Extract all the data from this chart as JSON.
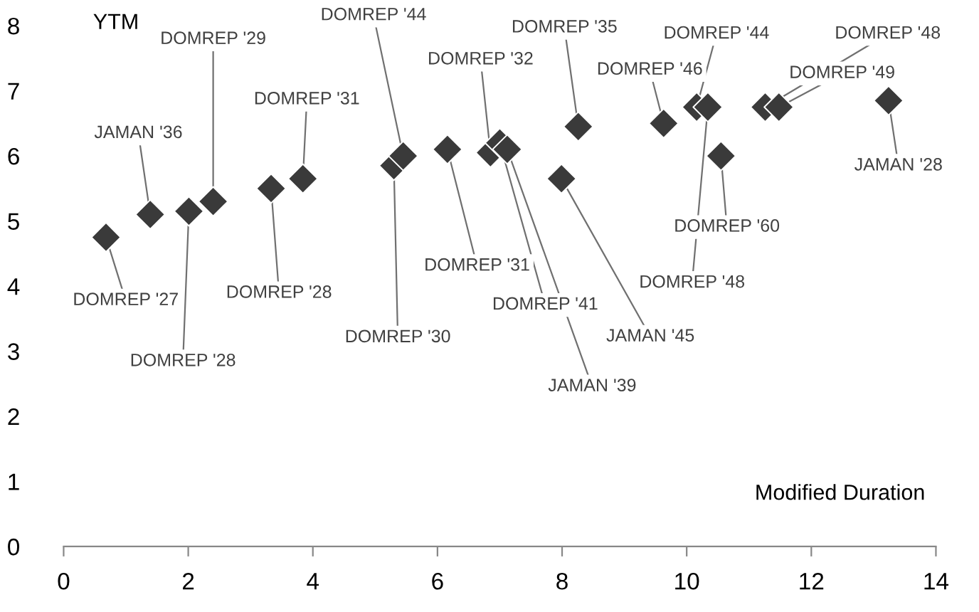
{
  "chart_data": {
    "type": "scatter",
    "xlabel": "Modified Duration",
    "ylabel": "YTM",
    "x": [
      0.68,
      1.39,
      2.01,
      2.4,
      3.33,
      3.84,
      5.3,
      5.45,
      6.16,
      6.85,
      7.0,
      7.12,
      7.99,
      8.26,
      9.63,
      10.16,
      10.34,
      10.55,
      11.26,
      11.48,
      13.24
    ],
    "series": [
      {
        "color": "#3a3a3a",
        "values": [
          4.75,
          5.1,
          5.15,
          5.3,
          5.5,
          5.65,
          5.85,
          6.0,
          6.1,
          6.05,
          6.2,
          6.1,
          5.65,
          6.45,
          6.5,
          6.75,
          6.75,
          6.0,
          6.75,
          6.75,
          6.85
        ]
      }
    ],
    "marker": "diamond",
    "xlim": [
      0,
      14
    ],
    "ylim": [
      0,
      8
    ],
    "xticks": [
      0,
      2,
      4,
      6,
      8,
      10,
      12,
      14
    ],
    "yticks": [
      0,
      1,
      2,
      3,
      4,
      5,
      6,
      7,
      8
    ],
    "grid": false,
    "legend": false,
    "annotations": [
      {
        "text": "DOMREP '27",
        "x": 0.68,
        "y": 4.75
      },
      {
        "text": "JAMAN '36",
        "x": 1.39,
        "y": 5.1
      },
      {
        "text": "DOMREP '28",
        "x": 2.01,
        "y": 5.15
      },
      {
        "text": "DOMREP '29",
        "x": 2.4,
        "y": 5.3
      },
      {
        "text": "DOMREP '28",
        "x": 3.33,
        "y": 5.5
      },
      {
        "text": "DOMREP '31",
        "x": 3.84,
        "y": 5.65
      },
      {
        "text": "DOMREP '30",
        "x": 5.3,
        "y": 5.85
      },
      {
        "text": "DOMREP '44",
        "x": 5.45,
        "y": 6.0
      },
      {
        "text": "DOMREP '31",
        "x": 6.16,
        "y": 6.1
      },
      {
        "text": "DOMREP '32",
        "x": 6.85,
        "y": 6.05
      },
      {
        "text": "DOMREP '41",
        "x": 7.0,
        "y": 6.2
      },
      {
        "text": "JAMAN '39",
        "x": 7.12,
        "y": 6.1
      },
      {
        "text": "JAMAN '45",
        "x": 7.99,
        "y": 5.65
      },
      {
        "text": "DOMREP '35",
        "x": 8.26,
        "y": 6.45
      },
      {
        "text": "DOMREP '46",
        "x": 9.63,
        "y": 6.5
      },
      {
        "text": "DOMREP '44",
        "x": 10.16,
        "y": 6.75
      },
      {
        "text": "DOMREP '48",
        "x": 10.34,
        "y": 6.75
      },
      {
        "text": "DOMREP '60",
        "x": 10.55,
        "y": 6.0
      },
      {
        "text": "DOMREP '48",
        "x": 11.26,
        "y": 6.75
      },
      {
        "text": "DOMREP '49",
        "x": 11.48,
        "y": 6.75
      },
      {
        "text": "JAMAN '28",
        "x": 13.24,
        "y": 6.85
      }
    ]
  }
}
